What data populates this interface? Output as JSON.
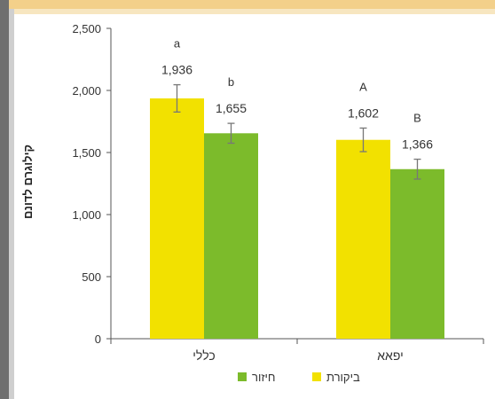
{
  "chart_data": {
    "type": "bar",
    "title": "",
    "xlabel": "",
    "ylabel": "קילוגרם לדונם",
    "ylim": [
      0,
      2500
    ],
    "yticks": [
      "0",
      "500",
      "1,000",
      "1,500",
      "2,000",
      "2,500"
    ],
    "yticks_values": [
      0,
      500,
      1000,
      1500,
      2000,
      2500
    ],
    "categories": [
      "כללי",
      "יפאא"
    ],
    "series": [
      {
        "name": "ביקורת",
        "color": "#f2e100",
        "values": [
          1936,
          1602
        ],
        "value_labels": [
          "1,936",
          "1,602"
        ],
        "errors": [
          110,
          95
        ],
        "letters": [
          "a",
          "A"
        ]
      },
      {
        "name": "חיזור",
        "color": "#7cbb2b",
        "values": [
          1655,
          1366
        ],
        "value_labels": [
          "1,655",
          "1,366"
        ],
        "errors": [
          80,
          80
        ],
        "letters": [
          "b",
          "B"
        ]
      }
    ],
    "grid": false,
    "legend_placement": "bottom"
  }
}
